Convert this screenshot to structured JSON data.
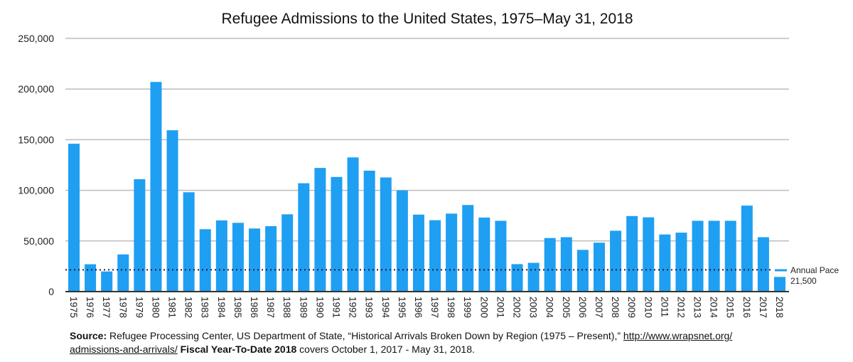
{
  "chart_data": {
    "type": "bar",
    "title": "Refugee Admissions to the United States, 1975–May 31, 2018",
    "xlabel": "",
    "ylabel": "",
    "ylim": [
      0,
      250000
    ],
    "yticks": [
      0,
      50000,
      100000,
      150000,
      200000,
      250000
    ],
    "ytick_labels": [
      "0",
      "50,000",
      "100,000",
      "150,000",
      "200,000",
      "250,000"
    ],
    "grid": true,
    "bar_color": "#1e9ff2",
    "categories": [
      "1975",
      "1976",
      "1977",
      "1978",
      "1979",
      "1980",
      "1981",
      "1982",
      "1983",
      "1984",
      "1985",
      "1986",
      "1987",
      "1988",
      "1989",
      "1990",
      "1991",
      "1992",
      "1993",
      "1994",
      "1995",
      "1996",
      "1997",
      "1998",
      "1999",
      "2000",
      "2001",
      "2002",
      "2003",
      "2004",
      "2005",
      "2006",
      "2007",
      "2008",
      "2009",
      "2010",
      "2011",
      "2012",
      "2013",
      "2014",
      "2015",
      "2016",
      "2017",
      "2018"
    ],
    "values": [
      146000,
      27000,
      19900,
      36700,
      111000,
      207000,
      159300,
      98100,
      61600,
      70300,
      67900,
      62300,
      64600,
      76300,
      107000,
      122100,
      113200,
      132500,
      119400,
      112700,
      99900,
      76000,
      70500,
      77000,
      85500,
      73100,
      69900,
      27100,
      28400,
      52900,
      53700,
      41200,
      48300,
      60100,
      74600,
      73300,
      56400,
      58200,
      69900,
      69900,
      69900,
      84900,
      53700,
      14500
    ],
    "reference_line": {
      "value": 21500,
      "style": "dotted",
      "color": "#1a1a3a",
      "label_line1": "Annual Pace",
      "label_line2": "21,500",
      "legend_color": "#1e9ff2"
    },
    "legend_position": "right"
  },
  "footer": {
    "source_label": "Source:",
    "source_text": " Refugee Processing Center, US Department of State, “Historical Arrivals Broken Down by Region (1975 – Present),” ",
    "link_text_1": "http://www.wrapsnet.org/",
    "link_text_2": "admissions-and-arrivals/",
    "fytd_label": " Fiscal Year-To-Date 2018",
    "fytd_text": " covers October 1, 2017 - May 31, 2018."
  }
}
